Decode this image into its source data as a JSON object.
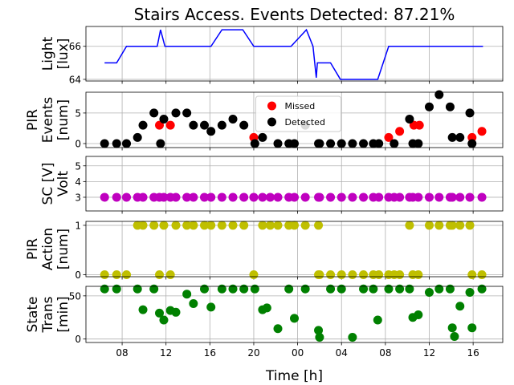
{
  "chart_data": [
    {
      "type": "line",
      "title": "Stairs Access. Events Detected: 87.21%",
      "ylabel": [
        "Light",
        "[lux]"
      ],
      "color": "#0000ff",
      "grid": true,
      "x": [
        6.4,
        7.5,
        8.4,
        11.2,
        11.5,
        11.9,
        16.1,
        17.1,
        19.0,
        20.0,
        23.4,
        24.8,
        25.4,
        25.7,
        25.8,
        27.0,
        27.9,
        31.3,
        32.3,
        40.9
      ],
      "values": [
        65,
        65,
        66,
        66,
        67,
        66,
        66,
        67,
        67,
        66,
        66,
        67,
        66,
        64.1,
        65,
        65,
        64,
        64,
        66,
        66
      ],
      "xlim": [
        4.7,
        42.7
      ],
      "xticks": [
        8,
        12,
        16,
        20,
        24,
        28,
        32,
        36,
        40
      ],
      "ylim": [
        63.9,
        67.2
      ],
      "yticks": [
        64,
        66
      ]
    },
    {
      "type": "scatter",
      "ylabel": [
        "PIR",
        "Events",
        "[num]"
      ],
      "grid": true,
      "legend": "upper center",
      "series": [
        {
          "name": "Missed",
          "color": "#ff0000",
          "x": [
            11.4,
            12.4,
            20.0,
            32.3,
            33.3,
            34.6,
            35.1,
            39.9,
            40.8
          ],
          "values": [
            3,
            3,
            1,
            1,
            2,
            3,
            3,
            1,
            2
          ]
        },
        {
          "name": "Detected",
          "color": "#000000",
          "x": [
            6.4,
            7.5,
            8.4,
            9.4,
            9.9,
            10.9,
            11.5,
            11.8,
            12.9,
            13.9,
            14.5,
            15.5,
            16.1,
            17.1,
            18.1,
            19.1,
            20.1,
            20.8,
            22.2,
            23.2,
            23.7,
            24.7,
            25.9,
            26.0,
            27.0,
            28.0,
            29.0,
            30.0,
            30.9,
            31.4,
            32.8,
            34.2,
            34.5,
            35.0,
            36.0,
            36.9,
            37.9,
            38.1,
            38.8,
            39.7,
            39.9
          ],
          "values": [
            0,
            0,
            0,
            1,
            3,
            5,
            0,
            4,
            5,
            5,
            3,
            3,
            2,
            3,
            4,
            3,
            0,
            1,
            0,
            0,
            0,
            3,
            0,
            0,
            0,
            0,
            0,
            0,
            0,
            0,
            0,
            4,
            0,
            0,
            6,
            8,
            6,
            1,
            1,
            5,
            0
          ]
        }
      ],
      "xlim": [
        4.7,
        42.7
      ],
      "xticks": [
        8,
        12,
        16,
        20,
        24,
        28,
        32,
        36,
        40
      ],
      "ylim": [
        -0.66,
        8.4
      ],
      "yticks": [
        0,
        5
      ]
    },
    {
      "type": "scatter",
      "ylabel": [
        "SC [V]",
        "Volt"
      ],
      "color": "#bf00bf",
      "grid": true,
      "x": [
        6.4,
        7.5,
        8.4,
        9.4,
        9.9,
        10.9,
        11.4,
        11.8,
        12.4,
        12.9,
        13.9,
        14.5,
        15.5,
        16.1,
        17.1,
        18.1,
        19.1,
        20.0,
        20.8,
        21.5,
        22.2,
        23.2,
        23.7,
        24.7,
        25.9,
        26.0,
        27.0,
        28.0,
        29.0,
        30.0,
        30.9,
        31.4,
        32.3,
        32.8,
        33.3,
        34.2,
        34.5,
        35.0,
        36.0,
        36.9,
        37.9,
        38.1,
        38.8,
        39.7,
        40.8
      ],
      "values": [
        3,
        3,
        3,
        3,
        3,
        3,
        3,
        3,
        3,
        3,
        3,
        3,
        3,
        3,
        3,
        3,
        3,
        3,
        3,
        3,
        3,
        3,
        3,
        3,
        3,
        3,
        3,
        3,
        3,
        3,
        3,
        3,
        3,
        3,
        3,
        3,
        3,
        3,
        3,
        3,
        3,
        3,
        3,
        3,
        3
      ],
      "xlim": [
        4.7,
        42.7
      ],
      "xticks": [
        8,
        12,
        16,
        20,
        24,
        28,
        32,
        36,
        40
      ],
      "ylim": [
        2.13,
        5.6
      ],
      "yticks": [
        3,
        4,
        5
      ]
    },
    {
      "type": "scatter",
      "ylabel": [
        "PIR",
        "Action",
        "[num]"
      ],
      "color": "#bfbf00",
      "grid": true,
      "x": [
        9.4,
        9.9,
        10.9,
        11.8,
        12.9,
        13.9,
        14.5,
        15.5,
        16.1,
        17.1,
        18.1,
        19.1,
        20.8,
        21.5,
        22.2,
        23.2,
        23.7,
        24.7,
        25.9,
        34.2,
        36.0,
        36.9,
        37.9,
        38.1,
        38.8,
        39.7,
        6.4,
        7.5,
        8.4,
        11.4,
        12.4,
        20.0,
        25.9,
        26.0,
        27.0,
        28.0,
        29.0,
        30.0,
        30.9,
        31.4,
        32.3,
        32.8,
        33.3,
        34.5,
        35.0,
        39.9,
        40.8
      ],
      "values": [
        1,
        1,
        1,
        1,
        1,
        1,
        1,
        1,
        1,
        1,
        1,
        1,
        1,
        1,
        1,
        1,
        1,
        1,
        1,
        1,
        1,
        1,
        1,
        1,
        1,
        1,
        0,
        0,
        0,
        0,
        0,
        0,
        0,
        0,
        0,
        0,
        0,
        0,
        0,
        0,
        0,
        0,
        0,
        0,
        0,
        0,
        0
      ],
      "xlim": [
        4.7,
        42.7
      ],
      "xticks": [
        8,
        12,
        16,
        20,
        24,
        28,
        32,
        36,
        40
      ],
      "ylim": [
        -0.04,
        1.08
      ],
      "yticks": [
        0,
        1
      ]
    },
    {
      "type": "scatter",
      "ylabel": [
        "State",
        "Trans",
        "[min]"
      ],
      "xlabel": "Time [h]",
      "color": "#008000",
      "grid": true,
      "x": [
        6.4,
        7.5,
        9.4,
        9.9,
        10.9,
        11.4,
        11.8,
        12.4,
        12.9,
        13.9,
        14.5,
        15.5,
        16.1,
        17.1,
        18.1,
        19.1,
        20.1,
        20.8,
        21.2,
        22.2,
        23.2,
        23.7,
        24.7,
        25.9,
        26.0,
        27.0,
        28.0,
        29.0,
        30.0,
        30.9,
        31.3,
        32.3,
        33.3,
        34.2,
        34.5,
        35.0,
        36.0,
        36.9,
        37.9,
        38.1,
        38.3,
        38.8,
        39.7,
        39.9,
        40.8
      ],
      "values": [
        58,
        58,
        58,
        34,
        58,
        30,
        22,
        33,
        31,
        52,
        41,
        58,
        37,
        58,
        58,
        58,
        58,
        34,
        36,
        12,
        58,
        24,
        58,
        10,
        2,
        58,
        58,
        2,
        58,
        58,
        22,
        58,
        58,
        58,
        25,
        28,
        54,
        58,
        58,
        13,
        3,
        38,
        54,
        13,
        58
      ],
      "xlim": [
        4.7,
        42.7
      ],
      "xticks": [
        {
          "value": 8,
          "label": "08"
        },
        {
          "value": 12,
          "label": "12"
        },
        {
          "value": 16,
          "label": "16"
        },
        {
          "value": 20,
          "label": "20"
        },
        {
          "value": 24,
          "label": "00"
        },
        {
          "value": 28,
          "label": "04"
        },
        {
          "value": 32,
          "label": "08"
        },
        {
          "value": 36,
          "label": "12"
        },
        {
          "value": 40,
          "label": "16"
        }
      ],
      "ylim": [
        -4,
        61
      ],
      "yticks": [
        0,
        50
      ]
    }
  ]
}
